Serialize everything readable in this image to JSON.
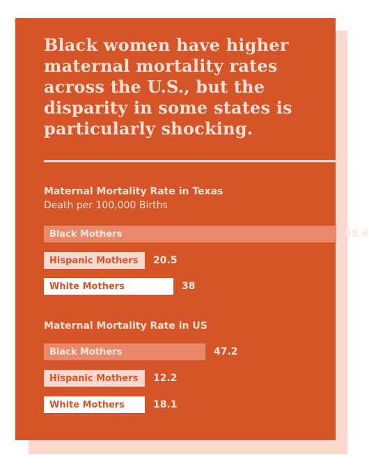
{
  "headline": "Black women have higher maternal mortality rates across the U.S., but the disparity in some states is particularly shocking.",
  "colors": {
    "card": "#d65528",
    "shadow": "#fbd9cf",
    "black_bar": "#e9896b",
    "hispanic_bar": "#fbd9cf",
    "white_bar": "#ffffff"
  },
  "chart_data": [
    {
      "type": "bar",
      "orientation": "horizontal",
      "title": "Maternal Mortality Rate in Texas",
      "subtitle": "Death per 100,000 Births",
      "categories": [
        "Black Mothers",
        "Hispanic Mothers",
        "White Mothers"
      ],
      "values": [
        85.6,
        20.5,
        38
      ],
      "value_labels": [
        "85.6",
        "20.5",
        "38"
      ]
    },
    {
      "type": "bar",
      "orientation": "horizontal",
      "title": "Maternal Mortality Rate in US",
      "subtitle": "",
      "categories": [
        "Black Mothers",
        "Hispanic Mothers",
        "White Mothers"
      ],
      "values": [
        47.2,
        12.2,
        18.1
      ],
      "value_labels": [
        "47.2",
        "12.2",
        "18.1"
      ]
    }
  ]
}
